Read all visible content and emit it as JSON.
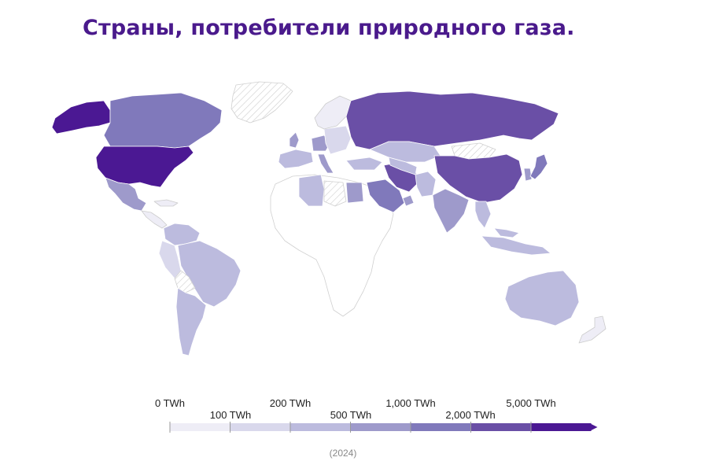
{
  "title": "Страны, потребители природного газа.",
  "year_note": "(2024)",
  "legend": {
    "labels": [
      "0 TWh",
      "100 TWh",
      "200 TWh",
      "500 TWh",
      "1,000 TWh",
      "2,000 TWh",
      "5,000 TWh"
    ],
    "colors": [
      "#eeedf6",
      "#d9d8ec",
      "#bcbbde",
      "#9e9acb",
      "#8079bb",
      "#6a4fa6",
      "#4b1893"
    ],
    "no_data_pattern": "hatched-gray"
  },
  "map": {
    "region": "World",
    "countries": [
      {
        "name": "United States",
        "color": "#4b1893"
      },
      {
        "name": "Russia",
        "color": "#6a4fa6"
      },
      {
        "name": "China",
        "color": "#6a4fa6"
      },
      {
        "name": "Iran",
        "color": "#6a4fa6"
      },
      {
        "name": "Canada",
        "color": "#8079bb"
      },
      {
        "name": "Saudi Arabia",
        "color": "#8079bb"
      },
      {
        "name": "Japan",
        "color": "#8079bb"
      },
      {
        "name": "Mexico",
        "color": "#9e9acb"
      },
      {
        "name": "India",
        "color": "#9e9acb"
      },
      {
        "name": "Germany",
        "color": "#9e9acb"
      },
      {
        "name": "United Kingdom",
        "color": "#9e9acb"
      },
      {
        "name": "Italy",
        "color": "#9e9acb"
      },
      {
        "name": "Egypt",
        "color": "#9e9acb"
      },
      {
        "name": "UAE",
        "color": "#9e9acb"
      },
      {
        "name": "Australia",
        "color": "#bcbbde"
      },
      {
        "name": "Argentina",
        "color": "#bcbbde"
      },
      {
        "name": "Brazil",
        "color": "#bcbbde"
      },
      {
        "name": "Algeria",
        "color": "#bcbbde"
      },
      {
        "name": "Kazakhstan",
        "color": "#bcbbde"
      },
      {
        "name": "Uzbekistan",
        "color": "#bcbbde"
      },
      {
        "name": "Pakistan",
        "color": "#bcbbde"
      },
      {
        "name": "Indonesia",
        "color": "#bcbbde"
      },
      {
        "name": "Thailand",
        "color": "#bcbbde"
      },
      {
        "name": "Turkey",
        "color": "#bcbbde"
      },
      {
        "name": "Venezuela",
        "color": "#bcbbde"
      },
      {
        "name": "Greenland",
        "color": "no-data"
      },
      {
        "name": "Mongolia",
        "color": "no-data"
      },
      {
        "name": "Libya",
        "color": "no-data"
      },
      {
        "name": "Bolivia",
        "color": "no-data"
      },
      {
        "name": "Africa (most)",
        "color": "#ffffff"
      }
    ]
  }
}
